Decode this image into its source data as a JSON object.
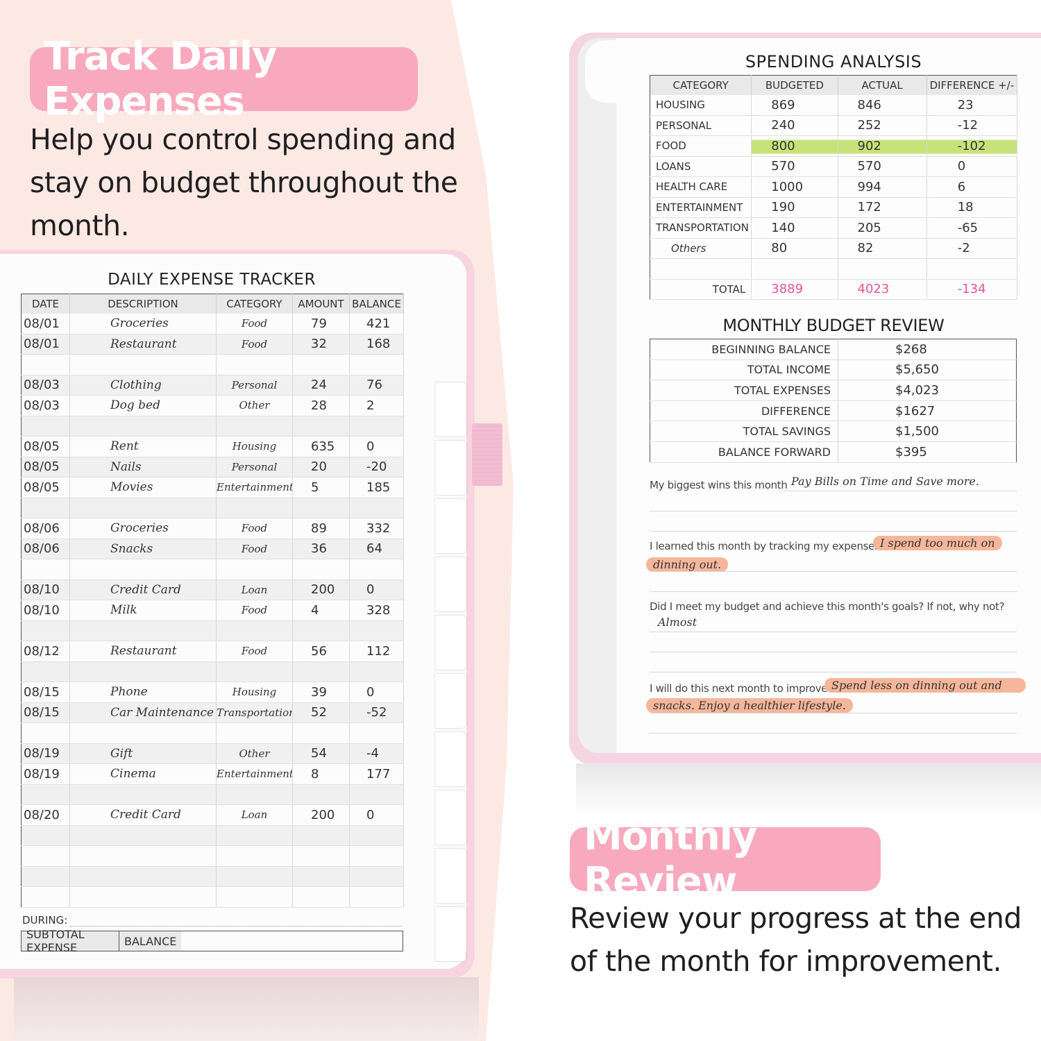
{
  "left_panel": {
    "badge": "Track Daily Expenses",
    "tagline": "Help you control spending and stay on budget throughout the month."
  },
  "right_panel": {
    "badge": "Monthly Review",
    "tagline": "Review your progress at the end of the month for improvement."
  },
  "tracker": {
    "title": "DAILY EXPENSE TRACKER",
    "headers": [
      "DATE",
      "DESCRIPTION",
      "CATEGORY",
      "AMOUNT",
      "BALANCE"
    ],
    "rows": [
      [
        "08/01",
        "Groceries",
        "Food",
        "79",
        "421"
      ],
      [
        "08/01",
        "Restaurant",
        "Food",
        "32",
        "168"
      ],
      [
        "",
        "",
        "",
        "",
        ""
      ],
      [
        "08/03",
        "Clothing",
        "Personal",
        "24",
        "76"
      ],
      [
        "08/03",
        "Dog bed",
        "Other",
        "28",
        "2"
      ],
      [
        "",
        "",
        "",
        "",
        ""
      ],
      [
        "08/05",
        "Rent",
        "Housing",
        "635",
        "0"
      ],
      [
        "08/05",
        "Nails",
        "Personal",
        "20",
        "-20"
      ],
      [
        "08/05",
        "Movies",
        "Entertainment",
        "5",
        "185"
      ],
      [
        "",
        "",
        "",
        "",
        ""
      ],
      [
        "08/06",
        "Groceries",
        "Food",
        "89",
        "332"
      ],
      [
        "08/06",
        "Snacks",
        "Food",
        "36",
        "64"
      ],
      [
        "",
        "",
        "",
        "",
        ""
      ],
      [
        "08/10",
        "Credit Card",
        "Loan",
        "200",
        "0"
      ],
      [
        "08/10",
        "Milk",
        "Food",
        "4",
        "328"
      ],
      [
        "",
        "",
        "",
        "",
        ""
      ],
      [
        "08/12",
        "Restaurant",
        "Food",
        "56",
        "112"
      ],
      [
        "",
        "",
        "",
        "",
        ""
      ],
      [
        "08/15",
        "Phone",
        "Housing",
        "39",
        "0"
      ],
      [
        "08/15",
        "Car Maintenance",
        "Transportation",
        "52",
        "-52"
      ],
      [
        "",
        "",
        "",
        "",
        ""
      ],
      [
        "08/19",
        "Gift",
        "Other",
        "54",
        "-4"
      ],
      [
        "08/19",
        "Cinema",
        "Entertainment",
        "8",
        "177"
      ],
      [
        "",
        "",
        "",
        "",
        ""
      ],
      [
        "08/20",
        "Credit Card",
        "Loan",
        "200",
        "0"
      ],
      [
        "",
        "",
        "",
        "",
        ""
      ],
      [
        "",
        "",
        "",
        "",
        ""
      ],
      [
        "",
        "",
        "",
        "",
        ""
      ],
      [
        "",
        "",
        "",
        "",
        ""
      ]
    ],
    "during_label": "DURING:",
    "subtotal_label": "SUBTOTAL EXPENSE",
    "balance_label": "BALANCE"
  },
  "spending_analysis": {
    "title": "SPENDING ANALYSIS",
    "headers": [
      "CATEGORY",
      "BUDGETED",
      "ACTUAL",
      "DIFFERENCE +/-"
    ],
    "rows": [
      [
        "HOUSING",
        "869",
        "846",
        "23"
      ],
      [
        "PERSONAL",
        "240",
        "252",
        "-12"
      ],
      [
        "FOOD",
        "800",
        "902",
        "-102"
      ],
      [
        "LOANS",
        "570",
        "570",
        "0"
      ],
      [
        "HEALTH CARE",
        "1000",
        "994",
        "6"
      ],
      [
        "ENTERTAINMENT",
        "190",
        "172",
        "18"
      ],
      [
        "TRANSPORTATION",
        "140",
        "205",
        "-65"
      ],
      [
        "Others",
        "80",
        "82",
        "-2"
      ],
      [
        "",
        "",
        "",
        ""
      ]
    ],
    "total_label": "TOTAL",
    "total_budgeted": "3889",
    "total_actual": "4023",
    "total_difference": "-134",
    "highlight_color": "#c8e27a"
  },
  "budget_review": {
    "title": "MONTHLY BUDGET REVIEW",
    "rows": [
      [
        "BEGINNING BALANCE",
        "$268"
      ],
      [
        "TOTAL INCOME",
        "$5,650"
      ],
      [
        "TOTAL EXPENSES",
        "$4,023"
      ],
      [
        "DIFFERENCE",
        "$1627"
      ],
      [
        "TOTAL SAVINGS",
        "$1,500"
      ],
      [
        "BALANCE FORWARD",
        "$395"
      ]
    ]
  },
  "reflections": {
    "wins_label": "My biggest wins this month",
    "wins_answer": "Pay Bills on Time and Save more.",
    "learned_label": "I learned this month by tracking my expenses",
    "learned_answer_1": "I spend too much on",
    "learned_answer_2": "dinning out.",
    "met_label": "Did I meet my budget and achieve this month's goals? If not, why not?",
    "met_answer": "Almost",
    "improve_label": "I will do this next month to improve",
    "improve_answer_1": "Spend less on dinning out and",
    "improve_answer_2": "snacks. Enjoy a healthier lifestyle."
  },
  "colors": {
    "badge_pink": "#f8a9bd",
    "total_pink": "#e0559b",
    "highlighter_orange": "#f6b69b",
    "background_peach": "#fde9e4"
  }
}
